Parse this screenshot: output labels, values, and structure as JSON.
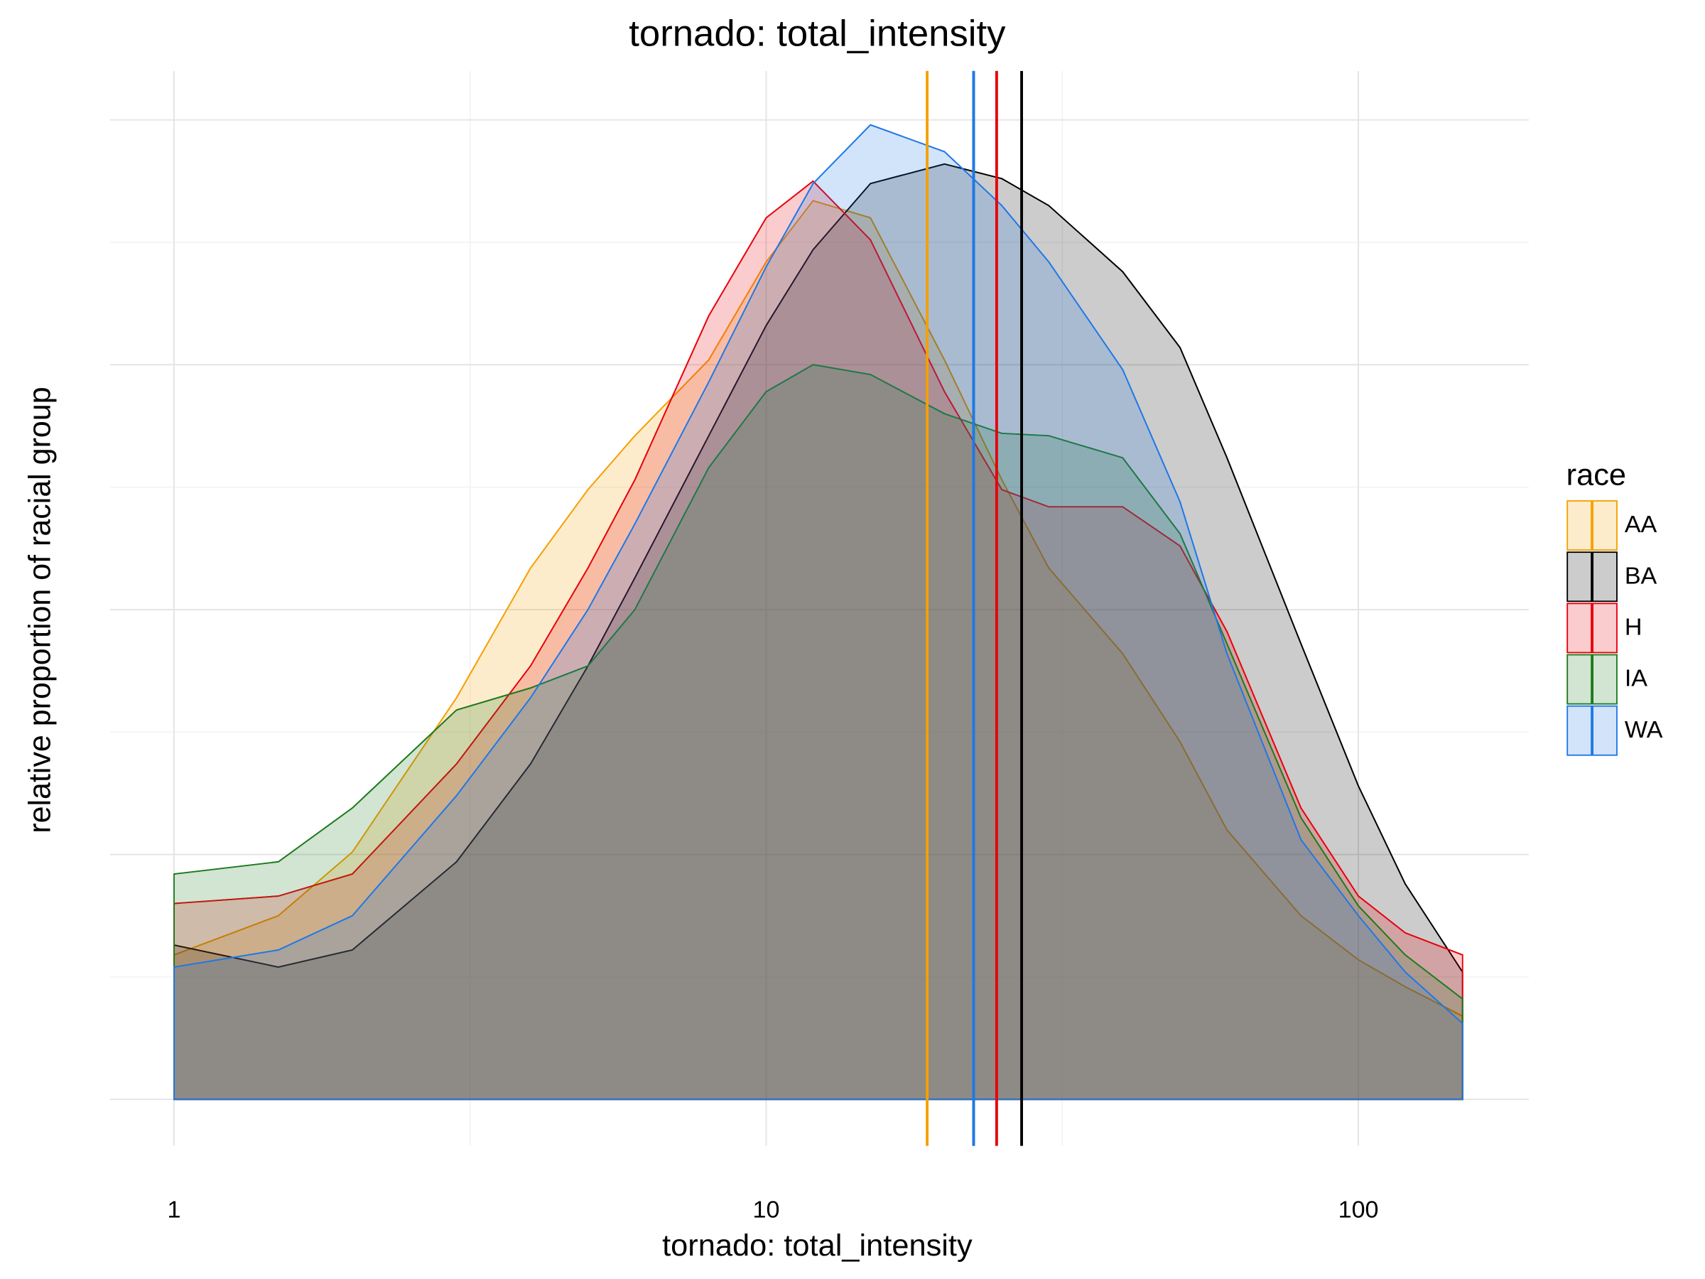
{
  "chart_data": {
    "type": "density",
    "title": "tornado: total_intensity",
    "x_label": "tornado: total_intensity",
    "y_label": "relative proportion of racial group",
    "legend_title": "race",
    "legend_position": "right",
    "log_x": true,
    "grid": true,
    "xlim": [
      0.78,
      194
    ],
    "xticks": [
      1,
      10,
      100
    ],
    "xminor": [
      3.162,
      31.62
    ],
    "ylim": [
      -0.019,
      0.42
    ],
    "yticks": [
      0,
      0.1,
      0.2,
      0.3,
      0.4
    ],
    "yminor": [
      0.05,
      0.15,
      0.25,
      0.35
    ],
    "fill_opacity": 0.2,
    "x": [
      1,
      1.5,
      2,
      3,
      4,
      5,
      6,
      8,
      10,
      12,
      15,
      20,
      25,
      30,
      40,
      50,
      60,
      80,
      100,
      120,
      150
    ],
    "series": [
      {
        "name": "AA",
        "color": "#f5a000",
        "mean": 18.7,
        "values": [
          0.059,
          0.075,
          0.101,
          0.164,
          0.217,
          0.249,
          0.271,
          0.302,
          0.342,
          0.367,
          0.36,
          0.302,
          0.253,
          0.217,
          0.182,
          0.146,
          0.11,
          0.075,
          0.057,
          0.046,
          0.034
        ]
      },
      {
        "name": "BA",
        "color": "#000000",
        "mean": 27.0,
        "values": [
          0.063,
          0.054,
          0.061,
          0.097,
          0.137,
          0.177,
          0.213,
          0.271,
          0.316,
          0.347,
          0.374,
          0.382,
          0.376,
          0.365,
          0.338,
          0.307,
          0.262,
          0.186,
          0.128,
          0.088,
          0.052
        ]
      },
      {
        "name": "H",
        "color": "#e8000b",
        "mean": 24.5,
        "values": [
          0.08,
          0.083,
          0.092,
          0.137,
          0.177,
          0.217,
          0.253,
          0.32,
          0.36,
          0.375,
          0.351,
          0.289,
          0.249,
          0.242,
          0.242,
          0.226,
          0.191,
          0.119,
          0.083,
          0.068,
          0.059
        ]
      },
      {
        "name": "IA",
        "color": "#1e7a1e",
        "mean": 22.4,
        "values": [
          0.092,
          0.097,
          0.119,
          0.159,
          0.168,
          0.177,
          0.2,
          0.258,
          0.289,
          0.3,
          0.296,
          0.28,
          0.272,
          0.271,
          0.262,
          0.231,
          0.186,
          0.115,
          0.079,
          0.059,
          0.041
        ]
      },
      {
        "name": "WA",
        "color": "#1f78e8",
        "mean": 22.4,
        "values": [
          0.054,
          0.061,
          0.075,
          0.124,
          0.164,
          0.2,
          0.235,
          0.293,
          0.34,
          0.374,
          0.398,
          0.387,
          0.365,
          0.342,
          0.298,
          0.244,
          0.182,
          0.106,
          0.075,
          0.052,
          0.031
        ]
      }
    ]
  }
}
